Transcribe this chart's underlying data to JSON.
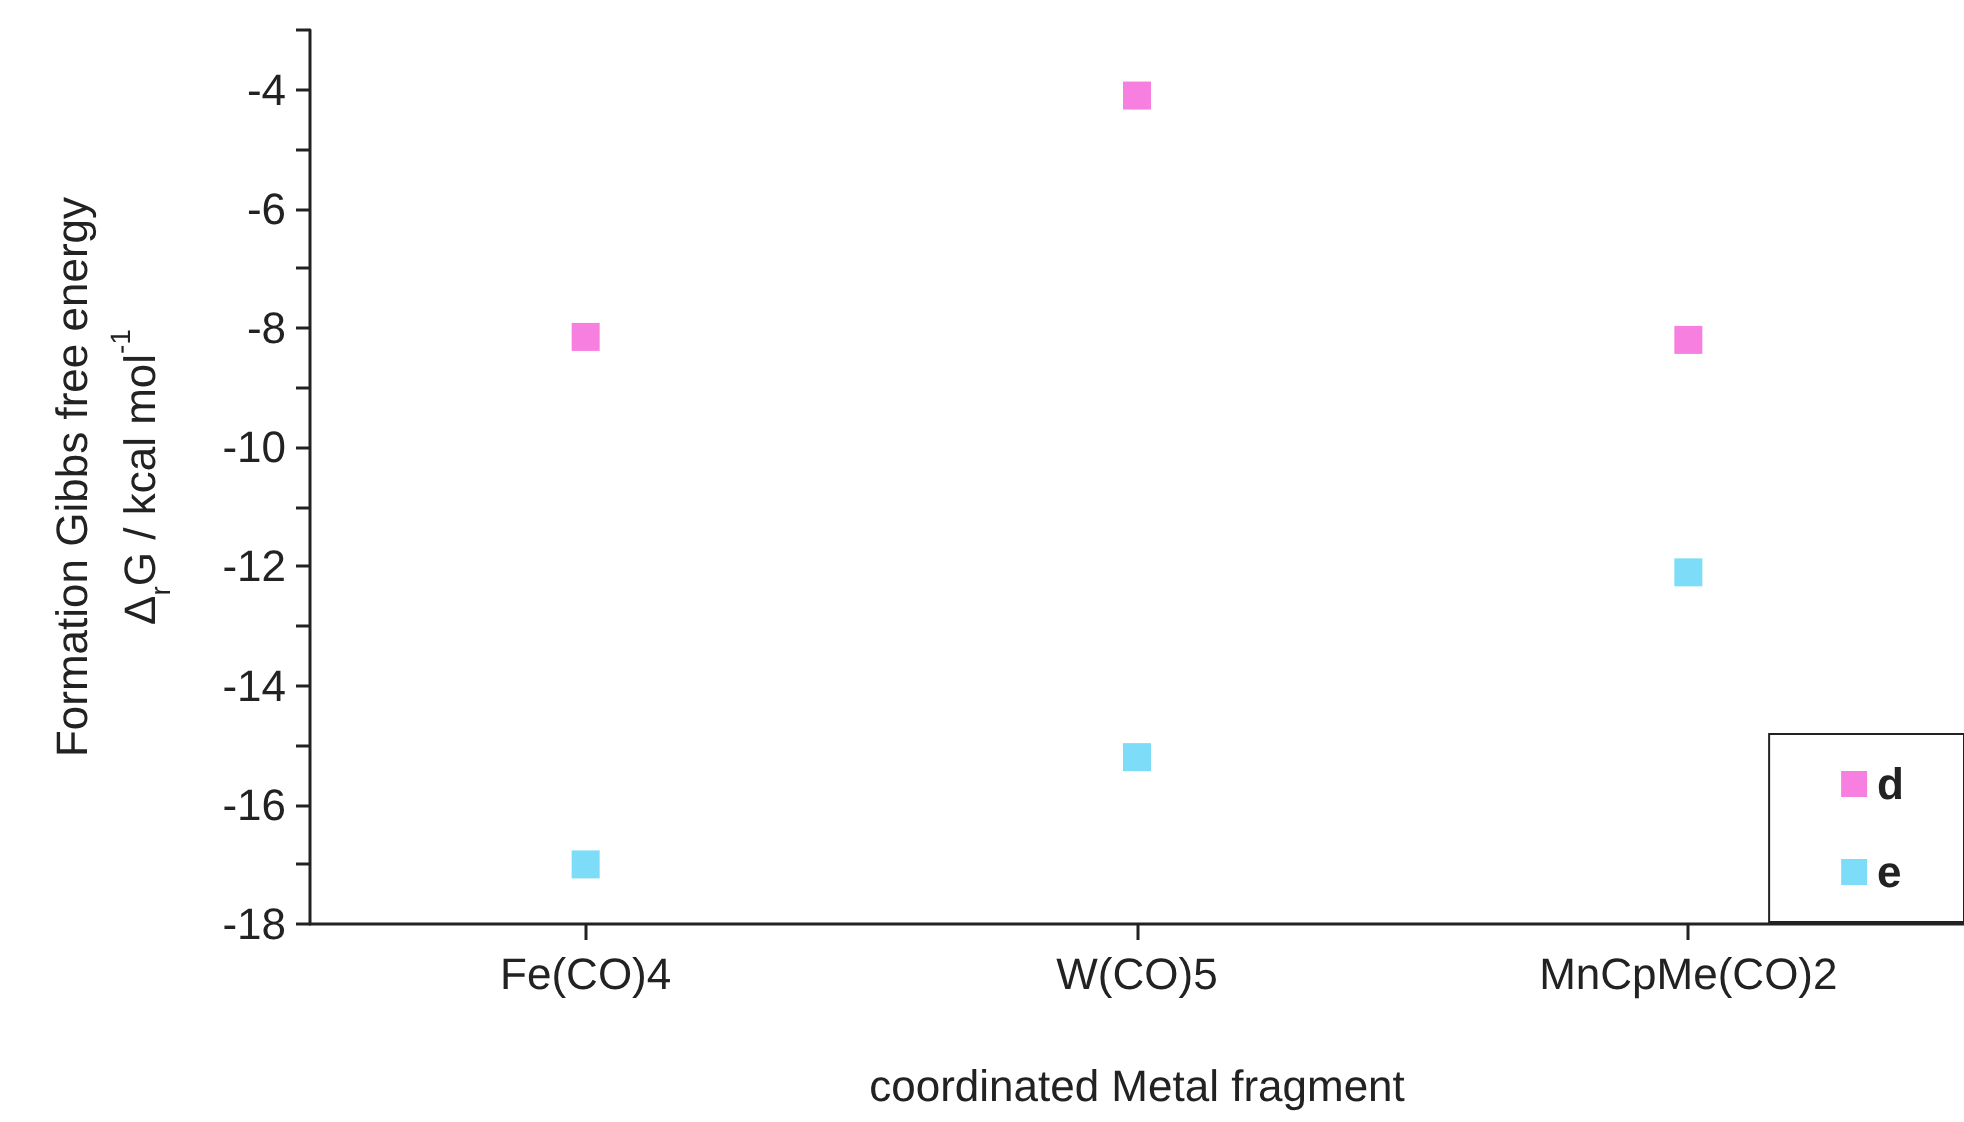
{
  "chart_data": {
    "type": "scatter",
    "xlabel": "coordinated Metal fragment",
    "ylabel": "Formation Gibbs free energy\nΔ$_{r}$G / kcal mol$^{-1}$",
    "categories": [
      "Fe(CO)4",
      "W(CO)5",
      "MnCpMe(CO)2"
    ],
    "series": [
      {
        "name": "d",
        "color": "#f55fd7",
        "values": [
          -8.15,
          -4.1,
          -8.2
        ]
      },
      {
        "name": "e",
        "color": "#5dd3f5",
        "values": [
          -17.0,
          -15.2,
          -12.1
        ]
      }
    ],
    "ylim": [
      -18,
      -3
    ],
    "yticks": [
      -18,
      {
        "value": -17,
        "label": null
      },
      -16,
      {
        "value": -15,
        "label": null
      },
      -14,
      {
        "value": -13,
        "label": null
      },
      -12,
      {
        "value": -11,
        "label": null
      },
      -10,
      {
        "value": -9,
        "label": null
      },
      -8,
      {
        "value": -7,
        "label": null
      },
      -6,
      {
        "value": -5,
        "label": null
      },
      -4,
      {
        "value": -3,
        "label": null
      }
    ],
    "marker": "square",
    "grid": false,
    "legend": "bottom right"
  }
}
